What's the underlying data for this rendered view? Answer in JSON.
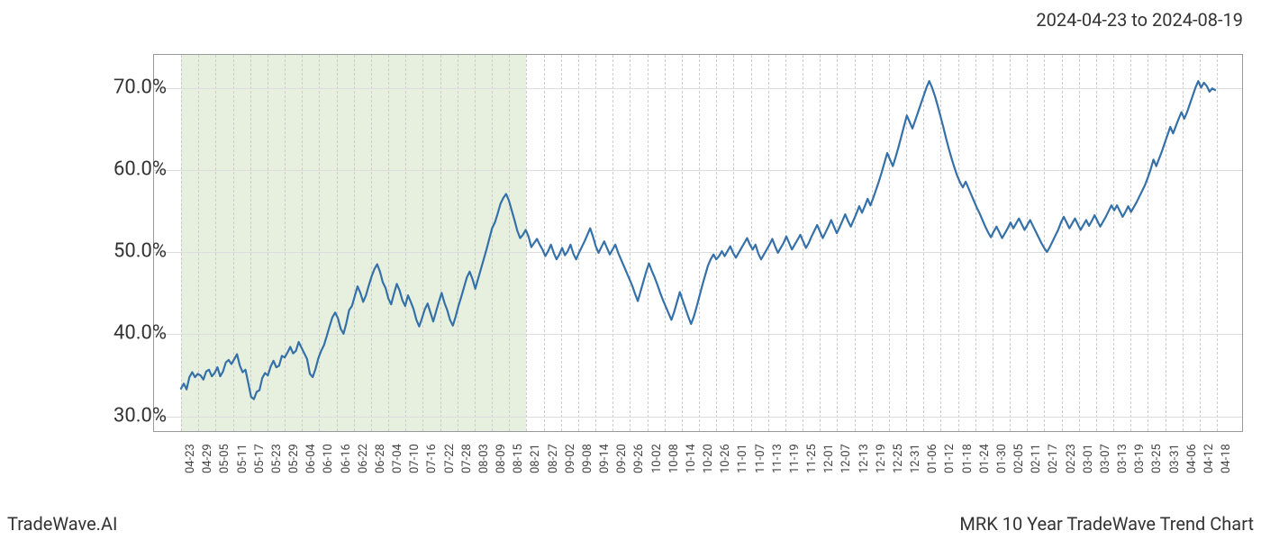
{
  "date_range_label": "2024-04-23 to 2024-08-19",
  "footer_left": "TradeWave.AI",
  "footer_right": "MRK 10 Year TradeWave Trend Chart",
  "chart": {
    "type": "line",
    "background_color": "#ffffff",
    "border_color": "#999999",
    "grid_v_color": "#cccccc",
    "grid_h_color": "#dddddd",
    "highlight_fill": "#d3e4c5",
    "highlight_opacity": 0.55,
    "highlight_start_index": 0,
    "highlight_end_index": 20,
    "line_color": "#3571a8",
    "line_width": 2.2,
    "ylim": [
      28,
      74
    ],
    "yticks": [
      30,
      40,
      50,
      60,
      70
    ],
    "ytick_labels": [
      "30.0%",
      "40.0%",
      "50.0%",
      "60.0%",
      "70.0%"
    ],
    "ylabel_fontsize": 22,
    "xlabel_fontsize": 13,
    "x_labels": [
      "04-23",
      "04-29",
      "05-05",
      "05-11",
      "05-17",
      "05-23",
      "05-29",
      "06-04",
      "06-10",
      "06-16",
      "06-22",
      "06-28",
      "07-04",
      "07-10",
      "07-16",
      "07-22",
      "07-28",
      "08-03",
      "08-09",
      "08-15",
      "08-21",
      "08-27",
      "09-02",
      "09-08",
      "09-14",
      "09-20",
      "09-26",
      "10-02",
      "10-08",
      "10-14",
      "10-20",
      "10-26",
      "11-01",
      "11-07",
      "11-13",
      "11-19",
      "11-25",
      "12-01",
      "12-07",
      "12-13",
      "12-19",
      "12-25",
      "12-31",
      "01-06",
      "01-12",
      "01-18",
      "01-24",
      "01-30",
      "02-05",
      "02-11",
      "02-17",
      "02-23",
      "03-01",
      "03-07",
      "03-13",
      "03-19",
      "03-25",
      "03-31",
      "04-06",
      "04-12",
      "04-18"
    ],
    "series": [
      33.2,
      33.8,
      33.1,
      34.6,
      35.2,
      34.6,
      35.0,
      34.8,
      34.3,
      35.3,
      35.5,
      34.7,
      35.1,
      35.8,
      34.7,
      35.3,
      36.4,
      36.7,
      36.2,
      36.8,
      37.4,
      36.0,
      35.2,
      35.5,
      33.9,
      32.2,
      31.9,
      32.8,
      33.0,
      34.5,
      35.1,
      34.8,
      35.9,
      36.6,
      35.8,
      36.0,
      37.2,
      37.0,
      37.6,
      38.3,
      37.5,
      37.8,
      38.9,
      38.2,
      37.5,
      36.8,
      35.0,
      34.6,
      35.6,
      36.9,
      37.8,
      38.5,
      39.6,
      40.8,
      41.9,
      42.5,
      41.8,
      40.5,
      39.9,
      41.2,
      42.8,
      43.3,
      44.5,
      45.7,
      44.9,
      43.8,
      44.6,
      45.8,
      46.9,
      47.8,
      48.4,
      47.5,
      46.2,
      45.5,
      44.2,
      43.5,
      44.8,
      46.0,
      45.2,
      44.0,
      43.3,
      44.6,
      43.8,
      42.9,
      41.6,
      40.8,
      41.8,
      42.9,
      43.6,
      42.5,
      41.4,
      42.6,
      43.8,
      44.9,
      43.7,
      42.8,
      41.6,
      40.9,
      42.0,
      43.3,
      44.4,
      45.6,
      46.8,
      47.5,
      46.6,
      45.4,
      46.6,
      47.8,
      49.0,
      50.2,
      51.5,
      52.8,
      53.5,
      54.6,
      55.8,
      56.5,
      57.0,
      56.2,
      55.0,
      53.8,
      52.5,
      51.6,
      52.0,
      52.6,
      51.8,
      50.5,
      51.0,
      51.5,
      50.8,
      50.2,
      49.4,
      50.0,
      50.8,
      49.8,
      49.0,
      49.6,
      50.4,
      49.5,
      50.0,
      50.8,
      49.7,
      49.0,
      49.8,
      50.5,
      51.2,
      52.0,
      52.8,
      51.8,
      50.6,
      49.8,
      50.5,
      51.2,
      50.4,
      49.6,
      50.2,
      50.8,
      49.8,
      49.0,
      48.2,
      47.4,
      46.6,
      45.8,
      44.8,
      43.9,
      45.1,
      46.3,
      47.5,
      48.5,
      47.6,
      46.8,
      45.9,
      44.9,
      44.0,
      43.2,
      42.4,
      41.6,
      42.6,
      43.8,
      45.0,
      44.0,
      43.0,
      42.0,
      41.1,
      42.0,
      43.2,
      44.5,
      45.8,
      47.0,
      48.2,
      49.0,
      49.6,
      49.0,
      49.4,
      50.0,
      49.4,
      50.0,
      50.6,
      49.8,
      49.2,
      49.8,
      50.4,
      51.0,
      51.6,
      50.8,
      50.2,
      50.8,
      49.7,
      49.0,
      49.6,
      50.2,
      50.8,
      51.5,
      50.6,
      49.8,
      50.4,
      51.0,
      51.8,
      51.0,
      50.2,
      50.8,
      51.4,
      52.0,
      51.2,
      50.4,
      51.0,
      51.8,
      52.5,
      53.2,
      52.4,
      51.6,
      52.3,
      53.0,
      53.8,
      53.0,
      52.2,
      52.9,
      53.7,
      54.5,
      53.7,
      53.0,
      53.8,
      54.6,
      55.5,
      54.7,
      55.5,
      56.4,
      55.6,
      56.5,
      57.5,
      58.5,
      59.6,
      60.8,
      62.0,
      61.2,
      60.4,
      61.5,
      62.7,
      64.0,
      65.3,
      66.6,
      65.8,
      65.0,
      66.0,
      67.0,
      68.0,
      69.0,
      70.0,
      70.8,
      70.0,
      69.0,
      67.8,
      66.5,
      65.2,
      63.8,
      62.5,
      61.3,
      60.2,
      59.2,
      58.4,
      57.8,
      58.5,
      57.7,
      56.9,
      56.1,
      55.3,
      54.6,
      53.8,
      53.0,
      52.3,
      51.7,
      52.4,
      53.0,
      52.3,
      51.6,
      52.2,
      52.8,
      53.5,
      52.8,
      53.4,
      54.0,
      53.3,
      52.6,
      53.2,
      53.8,
      53.1,
      52.4,
      51.7,
      51.0,
      50.4,
      49.9,
      50.5,
      51.2,
      51.9,
      52.6,
      53.5,
      54.2,
      53.5,
      52.8,
      53.4,
      54.0,
      53.3,
      52.6,
      53.2,
      53.8,
      53.1,
      53.7,
      54.4,
      53.7,
      53.0,
      53.6,
      54.2,
      54.9,
      55.6,
      55.0,
      55.6,
      54.9,
      54.2,
      54.8,
      55.5,
      54.8,
      55.4,
      56.0,
      56.7,
      57.4,
      58.1,
      59.0,
      60.0,
      61.2,
      60.4,
      61.3,
      62.2,
      63.2,
      64.2,
      65.2,
      64.4,
      65.3,
      66.2,
      67.0,
      66.2,
      67.0,
      68.0,
      69.0,
      70.0,
      70.8,
      70.0,
      70.6,
      70.2,
      69.5,
      69.9,
      69.7
    ]
  }
}
